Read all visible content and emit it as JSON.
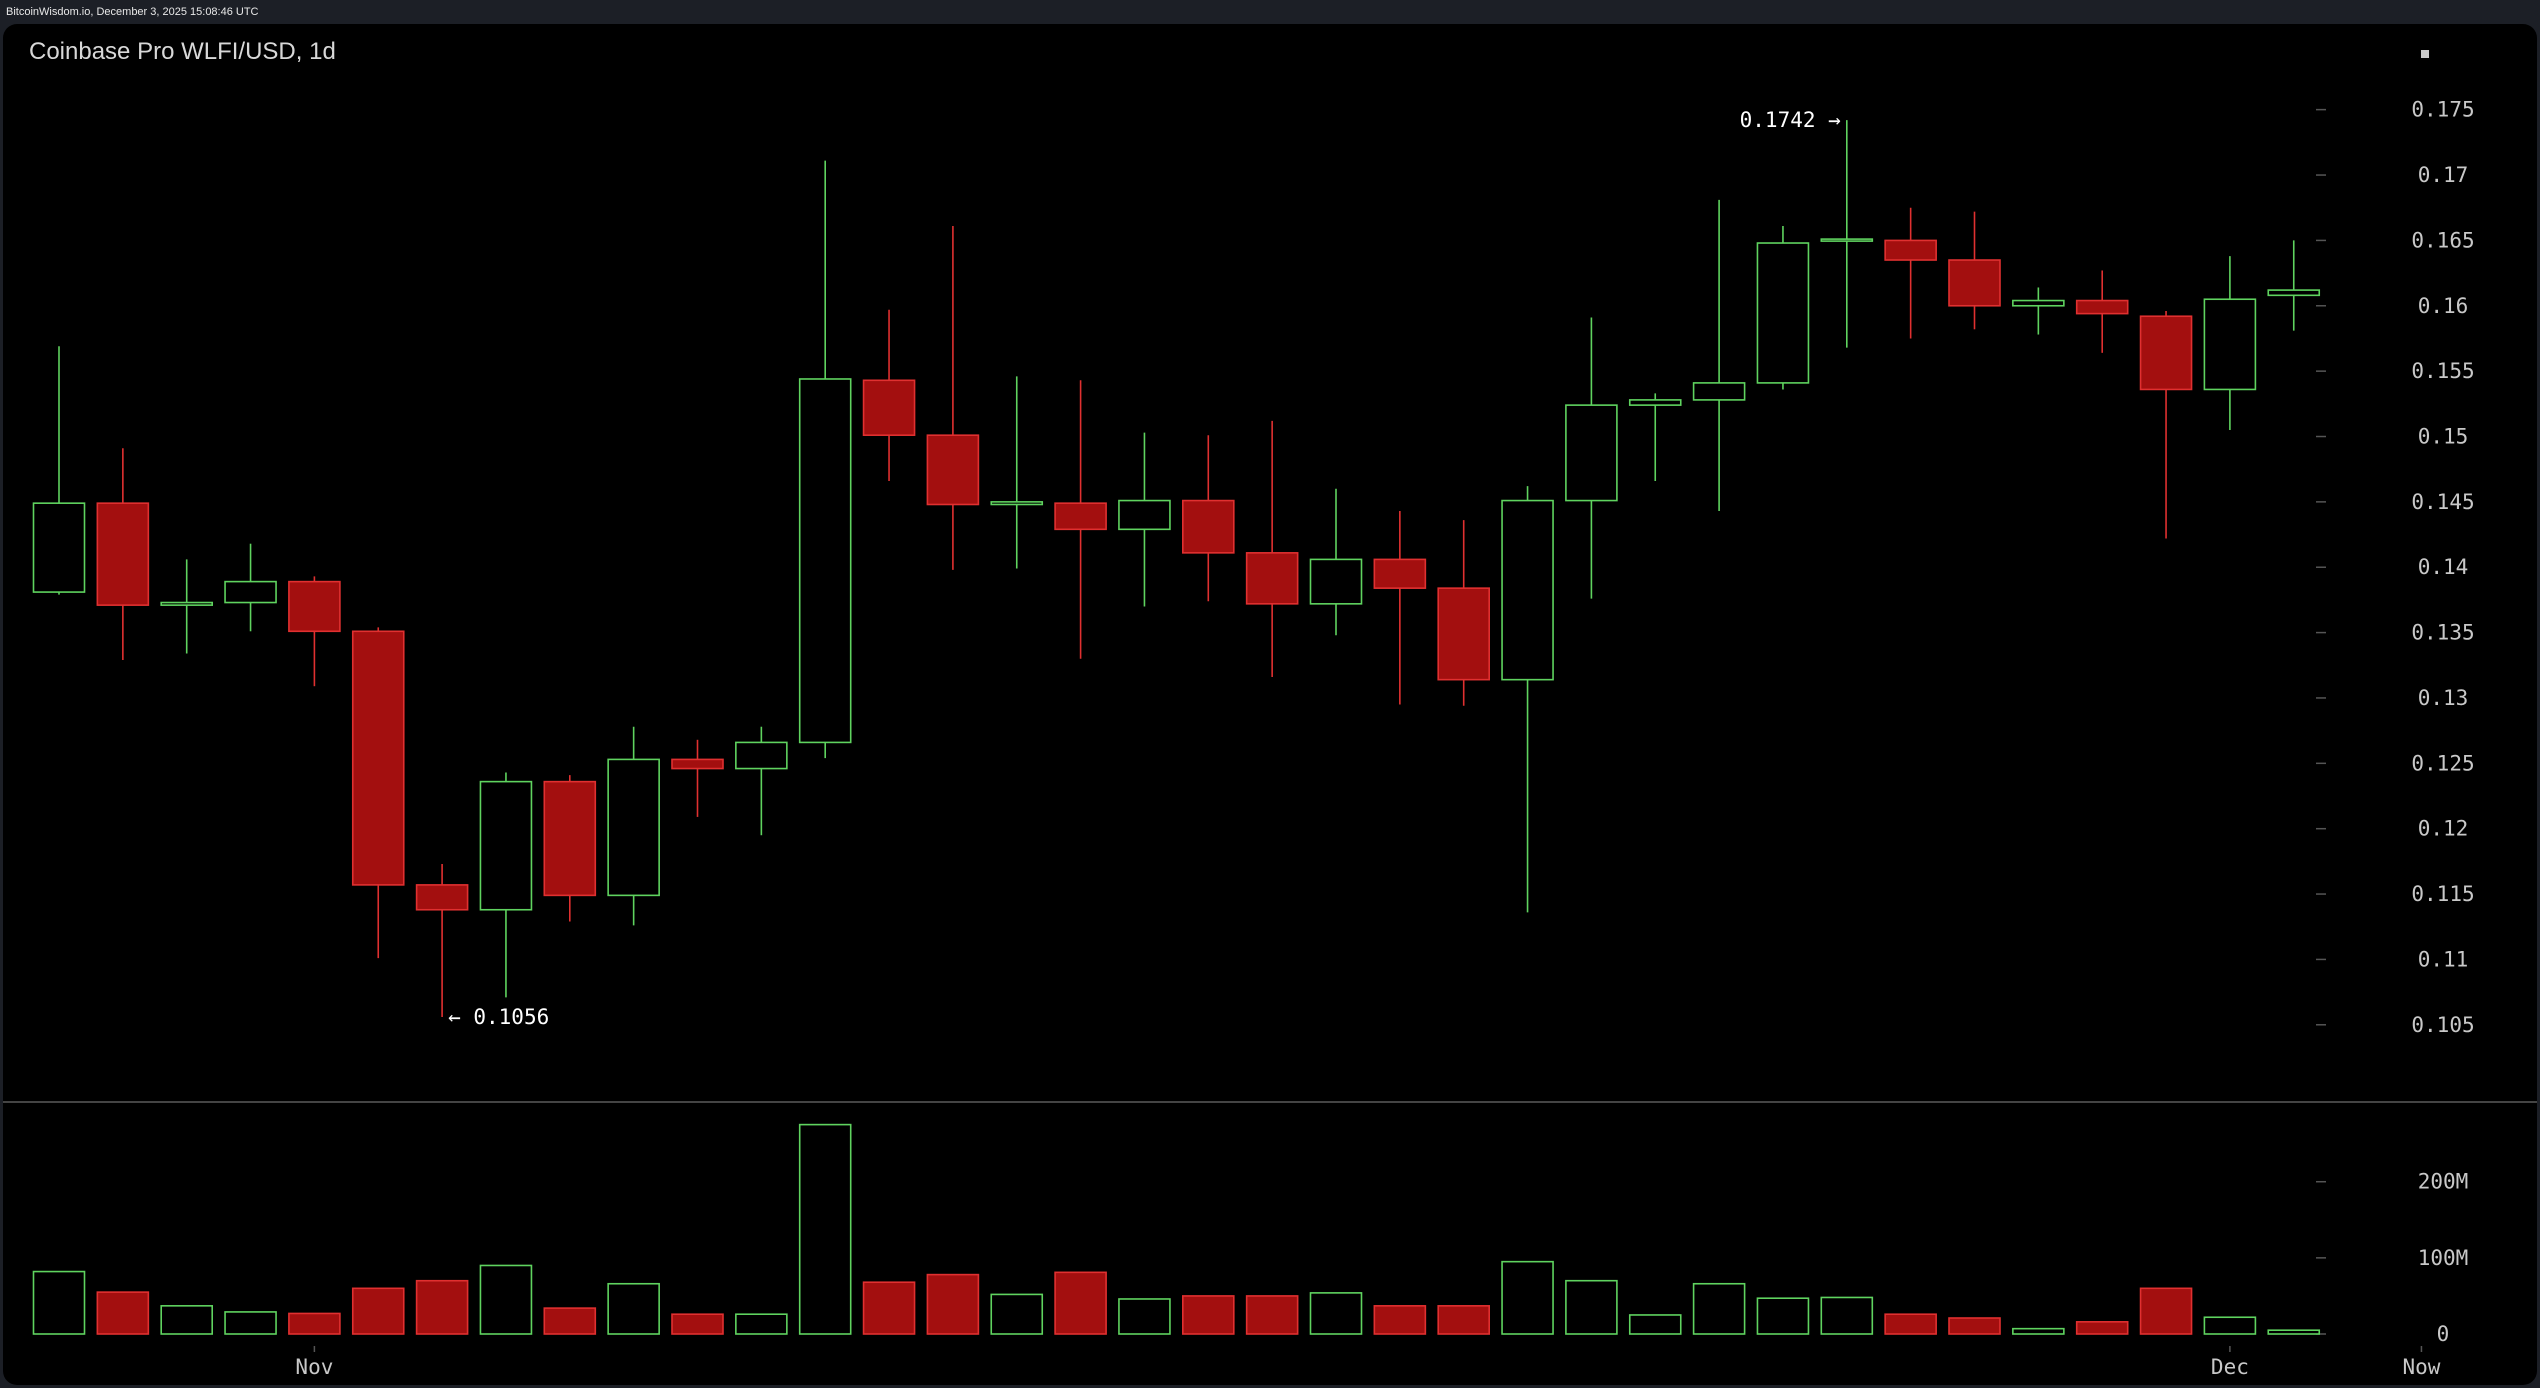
{
  "source_caption": "BitcoinWisdom.io, December 3, 2025 15:08:46 UTC",
  "colors": {
    "up": "#5fd35f",
    "down": "#a30f0f",
    "down_stroke": "#e03030",
    "axis": "#555555",
    "text": "#c8c8c8",
    "background": "#000000"
  },
  "chart_data": {
    "type": "candlestick",
    "title": "Coinbase Pro WLFI/USD, 1d",
    "price_ylim": [
      0.102,
      0.1775
    ],
    "price_ticks": [
      "0.175",
      "0.17",
      "0.165",
      "0.16",
      "0.155",
      "0.15",
      "0.145",
      "0.14",
      "0.135",
      "0.13",
      "0.125",
      "0.12",
      "0.115",
      "0.11",
      "0.105"
    ],
    "volume_ylim": [
      0,
      285
    ],
    "volume_ticks": [
      {
        "label": "200M",
        "value": 200
      },
      {
        "label": "100M",
        "value": 100
      },
      {
        "label": "0",
        "value": 0
      }
    ],
    "x_labels": [
      {
        "label": "Nov",
        "index": 4
      },
      {
        "label": "Dec",
        "index": 34
      },
      {
        "label": "Now",
        "index": 37
      }
    ],
    "annotations": [
      {
        "text": "0.1742 →",
        "index": 28,
        "value": 0.1742,
        "side": "left"
      },
      {
        "text": "← 0.1056",
        "index": 6,
        "value": 0.1056,
        "side": "right"
      }
    ],
    "candles": [
      {
        "open": 0.1381,
        "high": 0.1569,
        "low": 0.1379,
        "close": 0.1449,
        "volume": 82
      },
      {
        "open": 0.1449,
        "high": 0.1491,
        "low": 0.1329,
        "close": 0.1371,
        "volume": 55
      },
      {
        "open": 0.1371,
        "high": 0.1406,
        "low": 0.1334,
        "close": 0.1373,
        "volume": 37
      },
      {
        "open": 0.1373,
        "high": 0.1418,
        "low": 0.1351,
        "close": 0.1389,
        "volume": 29
      },
      {
        "open": 0.1389,
        "high": 0.1393,
        "low": 0.1309,
        "close": 0.1351,
        "volume": 27
      },
      {
        "open": 0.1351,
        "high": 0.1354,
        "low": 0.1101,
        "close": 0.1157,
        "volume": 60
      },
      {
        "open": 0.1157,
        "high": 0.1173,
        "low": 0.1056,
        "close": 0.1138,
        "volume": 70
      },
      {
        "open": 0.1138,
        "high": 0.1243,
        "low": 0.1071,
        "close": 0.1236,
        "volume": 90
      },
      {
        "open": 0.1236,
        "high": 0.1241,
        "low": 0.1129,
        "close": 0.1149,
        "volume": 34
      },
      {
        "open": 0.1149,
        "high": 0.1278,
        "low": 0.1126,
        "close": 0.1253,
        "volume": 66
      },
      {
        "open": 0.1253,
        "high": 0.1268,
        "low": 0.1209,
        "close": 0.1246,
        "volume": 26
      },
      {
        "open": 0.1246,
        "high": 0.1278,
        "low": 0.1195,
        "close": 0.1266,
        "volume": 26
      },
      {
        "open": 0.1266,
        "high": 0.1711,
        "low": 0.1254,
        "close": 0.1544,
        "volume": 275
      },
      {
        "open": 0.1543,
        "high": 0.1597,
        "low": 0.1466,
        "close": 0.1501,
        "volume": 68
      },
      {
        "open": 0.1501,
        "high": 0.1661,
        "low": 0.1398,
        "close": 0.1448,
        "volume": 78
      },
      {
        "open": 0.1448,
        "high": 0.1546,
        "low": 0.1399,
        "close": 0.145,
        "volume": 52
      },
      {
        "open": 0.1449,
        "high": 0.1543,
        "low": 0.133,
        "close": 0.1429,
        "volume": 81
      },
      {
        "open": 0.1429,
        "high": 0.1503,
        "low": 0.137,
        "close": 0.1451,
        "volume": 46
      },
      {
        "open": 0.1451,
        "high": 0.1501,
        "low": 0.1374,
        "close": 0.1411,
        "volume": 50
      },
      {
        "open": 0.1411,
        "high": 0.1512,
        "low": 0.1316,
        "close": 0.1372,
        "volume": 50
      },
      {
        "open": 0.1372,
        "high": 0.146,
        "low": 0.1348,
        "close": 0.1406,
        "volume": 54
      },
      {
        "open": 0.1406,
        "high": 0.1443,
        "low": 0.1295,
        "close": 0.1384,
        "volume": 37
      },
      {
        "open": 0.1384,
        "high": 0.1436,
        "low": 0.1294,
        "close": 0.1314,
        "volume": 37
      },
      {
        "open": 0.1314,
        "high": 0.1462,
        "low": 0.1136,
        "close": 0.1451,
        "volume": 95
      },
      {
        "open": 0.1451,
        "high": 0.1591,
        "low": 0.1376,
        "close": 0.1524,
        "volume": 70
      },
      {
        "open": 0.1524,
        "high": 0.1533,
        "low": 0.1466,
        "close": 0.1528,
        "volume": 25
      },
      {
        "open": 0.1528,
        "high": 0.1681,
        "low": 0.1443,
        "close": 0.1541,
        "volume": 66
      },
      {
        "open": 0.1541,
        "high": 0.1661,
        "low": 0.1536,
        "close": 0.1648,
        "volume": 47
      },
      {
        "open": 0.1651,
        "high": 0.1742,
        "low": 0.1568,
        "close": 0.1651,
        "volume": 48
      },
      {
        "open": 0.165,
        "high": 0.1675,
        "low": 0.1575,
        "close": 0.1635,
        "volume": 26
      },
      {
        "open": 0.1635,
        "high": 0.1672,
        "low": 0.1582,
        "close": 0.16,
        "volume": 21
      },
      {
        "open": 0.16,
        "high": 0.1614,
        "low": 0.1578,
        "close": 0.1604,
        "volume": 7
      },
      {
        "open": 0.1604,
        "high": 0.1627,
        "low": 0.1564,
        "close": 0.1594,
        "volume": 16
      },
      {
        "open": 0.1592,
        "high": 0.1596,
        "low": 0.1422,
        "close": 0.1536,
        "volume": 60
      },
      {
        "open": 0.1536,
        "high": 0.1638,
        "low": 0.1505,
        "close": 0.1605,
        "volume": 22
      },
      {
        "open": 0.1608,
        "high": 0.165,
        "low": 0.1581,
        "close": 0.1612,
        "volume": 5
      }
    ]
  }
}
